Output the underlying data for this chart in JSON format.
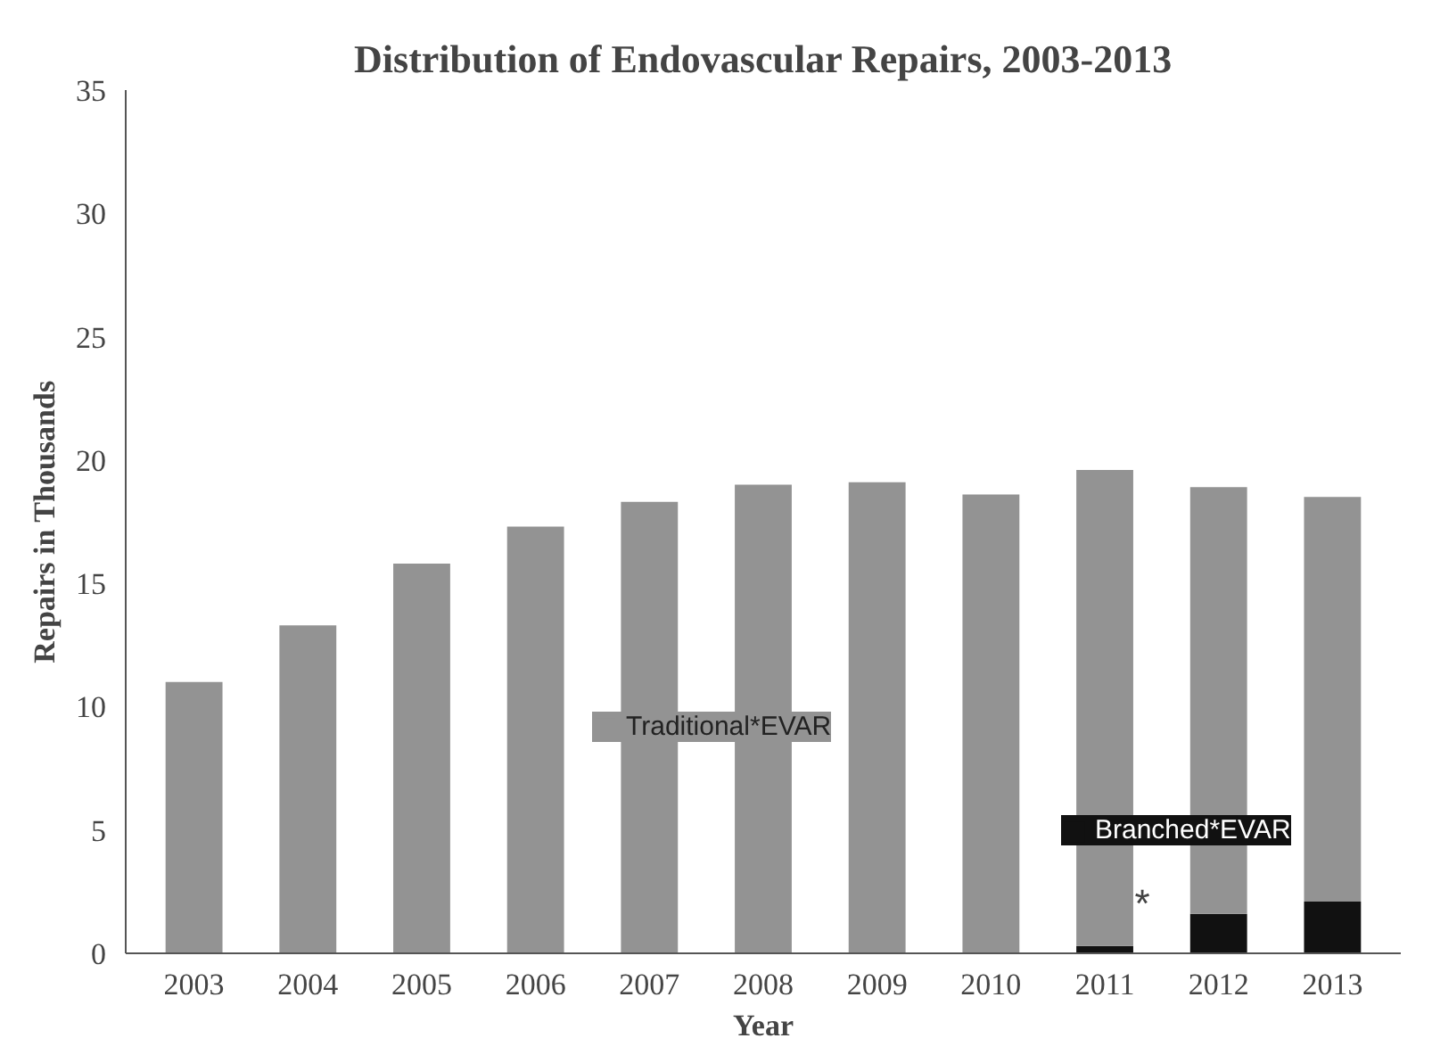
{
  "chart_data": {
    "type": "bar",
    "title": "Distribution of Endovascular Repairs, 2003-2013",
    "xlabel": "Year",
    "ylabel": "Repairs in Thousands",
    "categories": [
      "2003",
      "2004",
      "2005",
      "2006",
      "2007",
      "2008",
      "2009",
      "2010",
      "2011",
      "2012",
      "2013"
    ],
    "stacked": true,
    "series": [
      {
        "name": "Branched*EVAR",
        "color": "#111111",
        "values": [
          null,
          null,
          null,
          null,
          null,
          null,
          null,
          null,
          0.3,
          1.6,
          2.1
        ]
      },
      {
        "name": "Traditional*EVAR",
        "color": "#939393",
        "values": [
          11.0,
          13.3,
          15.8,
          17.3,
          18.3,
          19.0,
          19.1,
          18.6,
          19.3,
          17.3,
          16.4
        ]
      }
    ],
    "ylim": [
      0,
      35
    ],
    "yticks": [
      0,
      5,
      10,
      15,
      20,
      25,
      30,
      35
    ],
    "grid": false,
    "legend": "bottom right",
    "annotations": [
      "*"
    ]
  }
}
